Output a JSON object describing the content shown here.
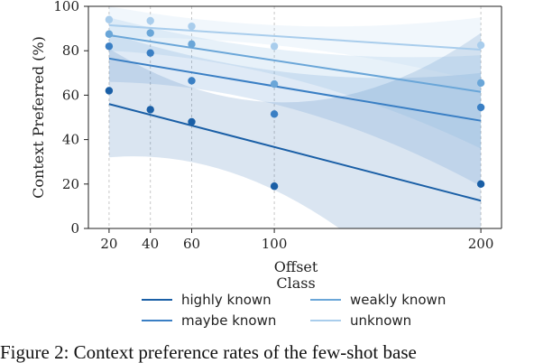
{
  "caption": "Figure 2: Context preference rates of the few-shot base",
  "chart_data": {
    "type": "scatter",
    "xlabel": "Offset",
    "ylabel": "Context Preferred (%)",
    "xlim": [
      10,
      210
    ],
    "ylim": [
      0,
      100
    ],
    "x_ticks": [
      20,
      40,
      60,
      100,
      200
    ],
    "y_ticks": [
      0,
      20,
      40,
      60,
      80,
      100
    ],
    "grid": "x-dashed",
    "legend_title": "Class",
    "legend_position": "bottom",
    "series": [
      {
        "name": "highly known",
        "color": "#1a5fa6",
        "x": [
          20,
          40,
          60,
          100,
          200
        ],
        "y": [
          62,
          53.5,
          48,
          19,
          20
        ],
        "fit": [
          56,
          12.5
        ],
        "band_low": [
          32,
          -60
        ],
        "band_high": [
          81,
          88
        ]
      },
      {
        "name": "maybe known",
        "color": "#3a7fc4",
        "x": [
          20,
          40,
          60,
          100,
          200
        ],
        "y": [
          82,
          79,
          66.5,
          51.5,
          54.5
        ],
        "fit": [
          76.5,
          48.5
        ],
        "band_low": [
          66,
          19
        ],
        "band_high": [
          88,
          70
        ]
      },
      {
        "name": "weakly known",
        "color": "#6aa6d8",
        "x": [
          20,
          40,
          60,
          100,
          200
        ],
        "y": [
          87.5,
          88,
          83,
          65,
          65.5
        ],
        "fit": [
          87,
          61.5
        ],
        "band_low": [
          80,
          36
        ],
        "band_high": [
          95,
          78
        ]
      },
      {
        "name": "unknown",
        "color": "#a9cdec",
        "x": [
          20,
          40,
          60,
          100,
          200
        ],
        "y": [
          94,
          93.5,
          91,
          82,
          82.5
        ],
        "fit": [
          91.5,
          80.5
        ],
        "band_low": [
          86,
          66
        ],
        "band_high": [
          100,
          95
        ]
      }
    ]
  }
}
